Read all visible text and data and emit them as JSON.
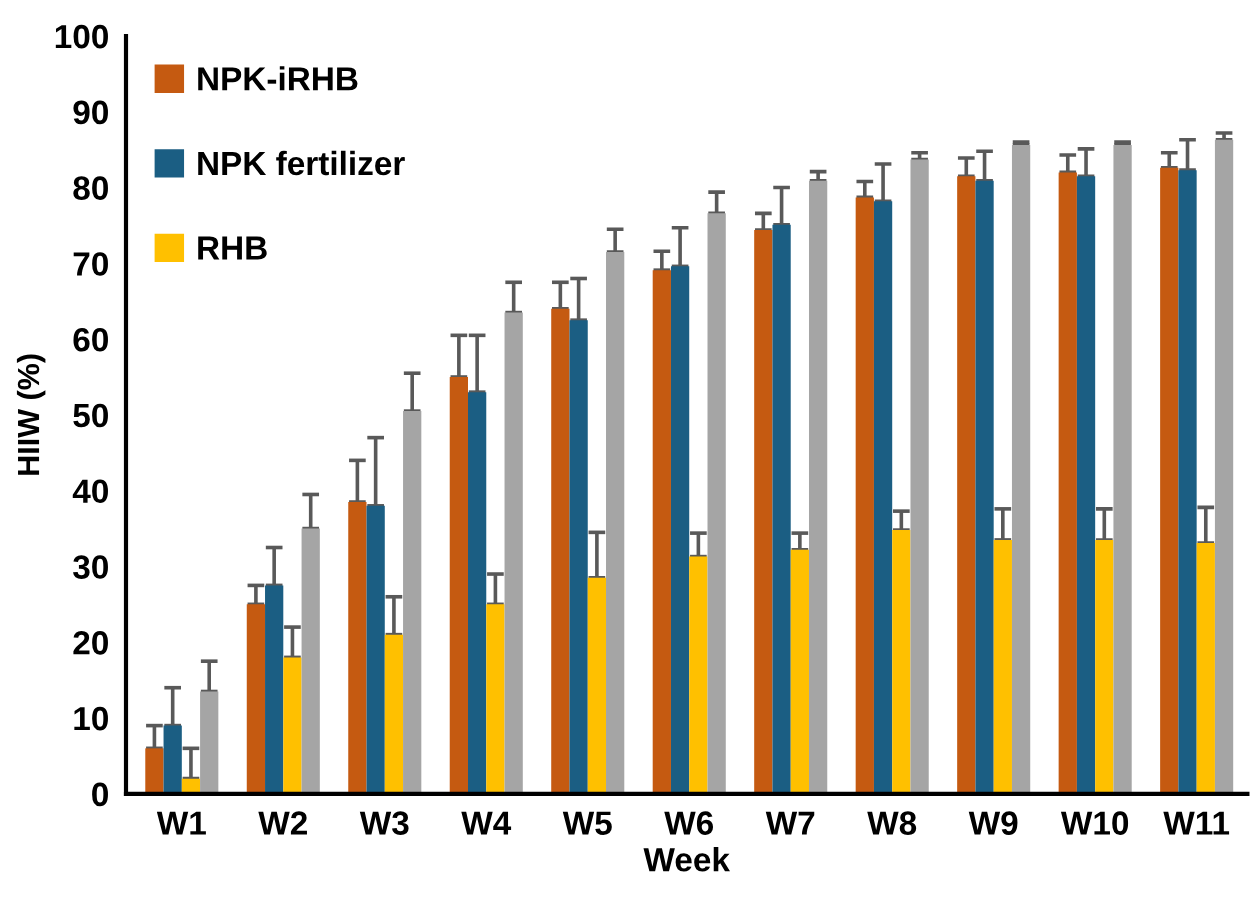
{
  "chart_data": {
    "type": "bar",
    "xlabel": "Week",
    "ylabel": "HIIW (%)",
    "categories": [
      "W1",
      "W2",
      "W3",
      "W4",
      "W5",
      "W6",
      "W7",
      "W8",
      "W9",
      "W10",
      "W11"
    ],
    "series": [
      {
        "name": "NPK-iRHB",
        "color": "#c55a11",
        "values": [
          6,
          25,
          38.5,
          55,
          64,
          69.1,
          74.4,
          78.7,
          81.5,
          82,
          82.6
        ],
        "errors": [
          [
            6,
            9
          ],
          [
            25,
            27.5
          ],
          [
            38.5,
            44
          ],
          [
            55,
            60.5
          ],
          [
            64,
            67.5
          ],
          [
            69.1,
            71.6
          ],
          [
            74.4,
            76.6
          ],
          [
            78.7,
            80.8
          ],
          [
            81.5,
            83.9
          ],
          [
            82,
            84.3
          ],
          [
            82.6,
            84.6
          ]
        ]
      },
      {
        "name": "NPK fertilizer",
        "color": "#1b5e83",
        "values": [
          9,
          27.5,
          38,
          53,
          62.5,
          69.6,
          75.1,
          78.2,
          80.9,
          81.5,
          82.3
        ],
        "errors": [
          [
            9,
            14
          ],
          [
            27.5,
            32.5
          ],
          [
            38,
            47
          ],
          [
            53,
            60.5
          ],
          [
            62.5,
            68
          ],
          [
            69.6,
            74.7
          ],
          [
            75.1,
            80
          ],
          [
            78.2,
            83.1
          ],
          [
            80.9,
            84.8
          ],
          [
            81.5,
            85.1
          ],
          [
            82.3,
            86.3
          ]
        ]
      },
      {
        "name": "RHB",
        "color": "#ffc000",
        "values": [
          2,
          18,
          21,
          25,
          28.5,
          31.3,
          32.2,
          34.8,
          33.5,
          33.5,
          33.1
        ],
        "errors": [
          [
            2,
            6
          ],
          [
            18,
            22
          ],
          [
            21,
            26
          ],
          [
            25,
            29
          ],
          [
            28.5,
            34.5
          ],
          [
            31.3,
            34.4
          ],
          [
            32.2,
            34.4
          ],
          [
            34.8,
            37.3
          ],
          [
            33.5,
            37.6
          ],
          [
            33.5,
            37.6
          ],
          [
            33.1,
            37.8
          ]
        ]
      },
      {
        "color": "#a5a5a5",
        "values": [
          13.5,
          35,
          50.5,
          63.5,
          71.5,
          76.6,
          80.9,
          83.7,
          85.6,
          85.6,
          86.3
        ],
        "errors": [
          [
            13.5,
            17.5
          ],
          [
            35,
            39.5
          ],
          [
            50.5,
            55.5
          ],
          [
            63.5,
            67.5
          ],
          [
            71.5,
            74.5
          ],
          [
            76.6,
            79.4
          ],
          [
            80.9,
            82.1
          ],
          [
            83.7,
            84.6
          ],
          [
            85.6,
            86
          ],
          [
            85.6,
            86
          ],
          [
            86.3,
            87.2
          ]
        ]
      }
    ],
    "ylim": [
      0,
      100
    ],
    "yticks": [
      0,
      10,
      20,
      30,
      40,
      50,
      60,
      70,
      80,
      90,
      100
    ],
    "grid": false,
    "legend": "top left"
  }
}
